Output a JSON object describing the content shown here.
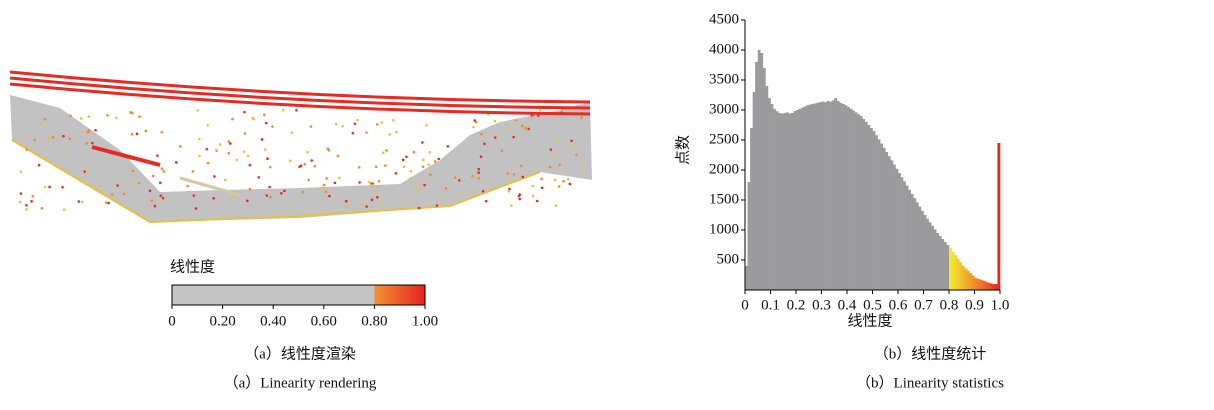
{
  "figure_a": {
    "colorbar": {
      "title": "线性度",
      "ticks": [
        0,
        {
          "value": 0.2,
          "label": "0.20"
        },
        {
          "value": 0.4,
          "label": "0.40"
        },
        {
          "value": 0.6,
          "label": "0.60"
        },
        {
          "value": 0.8,
          "label": "0.80"
        },
        {
          "value": 1,
          "label": "1.00"
        }
      ],
      "colors": [
        "#c4c4c4",
        "#f39233",
        "#e8231f"
      ]
    },
    "caption_cn": "（a）线性度渲染",
    "caption_en": "（a）Linearity rendering"
  },
  "chart_data": {
    "type": "histogram",
    "xlabel": "线性度",
    "ylabel": "点数",
    "caption_cn": "（b）线性度统计",
    "caption_en": "（b）Linearity statistics",
    "xlim": [
      0,
      1
    ],
    "ylim": [
      0,
      4500
    ],
    "xticks": [
      0,
      0.1,
      0.2,
      0.3,
      0.4,
      0.5,
      0.6,
      0.7,
      0.8,
      0.9,
      {
        "value": 1,
        "label": "1.0"
      }
    ],
    "yticks": [
      500,
      1000,
      1500,
      2000,
      2500,
      3000,
      3500,
      4000,
      4500
    ],
    "colors": [
      "#9b9b9d",
      "#f3ea2c",
      "#f08a2a",
      "#e61e1a"
    ],
    "bins": [
      0,
      0.01,
      0.02,
      0.03,
      0.04,
      0.05,
      0.06,
      0.07,
      0.08,
      0.09,
      0.1,
      0.11,
      0.12,
      0.13,
      0.14,
      0.15,
      0.16,
      0.17,
      0.18,
      0.19,
      0.2,
      0.21,
      0.22,
      0.23,
      0.24,
      0.25,
      0.26,
      0.27,
      0.28,
      0.29,
      0.3,
      0.31,
      0.32,
      0.33,
      0.34,
      0.35,
      0.36,
      0.37,
      0.38,
      0.39,
      0.4,
      0.41,
      0.42,
      0.43,
      0.44,
      0.45,
      0.46,
      0.47,
      0.48,
      0.49,
      0.5,
      0.51,
      0.52,
      0.53,
      0.54,
      0.55,
      0.56,
      0.57,
      0.58,
      0.59,
      0.6,
      0.61,
      0.62,
      0.63,
      0.64,
      0.65,
      0.66,
      0.67,
      0.68,
      0.69,
      0.7,
      0.71,
      0.72,
      0.73,
      0.74,
      0.75,
      0.76,
      0.77,
      0.78,
      0.79,
      0.8,
      0.81,
      0.82,
      0.83,
      0.84,
      0.85,
      0.86,
      0.87,
      0.88,
      0.89,
      0.9,
      0.91,
      0.92,
      0.93,
      0.94,
      0.95,
      0.96,
      0.97,
      0.98,
      0.99,
      1
    ],
    "values": [
      400,
      1800,
      2700,
      3300,
      3800,
      4000,
      3950,
      3700,
      3400,
      3200,
      3100,
      3020,
      2980,
      2950,
      2940,
      2950,
      2960,
      2940,
      2950,
      2980,
      3000,
      3020,
      3040,
      3060,
      3080,
      3090,
      3100,
      3110,
      3120,
      3130,
      3140,
      3130,
      3150,
      3140,
      3160,
      3200,
      3150,
      3120,
      3100,
      3080,
      3050,
      3020,
      2990,
      2960,
      2930,
      2900,
      2850,
      2800,
      2750,
      2700,
      2650,
      2580,
      2510,
      2440,
      2370,
      2300,
      2230,
      2160,
      2090,
      2020,
      1950,
      1880,
      1810,
      1740,
      1670,
      1600,
      1530,
      1460,
      1390,
      1320,
      1250,
      1190,
      1130,
      1070,
      1010,
      950,
      900,
      850,
      800,
      750,
      700,
      640,
      580,
      520,
      460,
      400,
      360,
      320,
      280,
      240,
      200,
      185,
      170,
      155,
      140,
      120,
      110,
      100,
      100,
      2450
    ]
  }
}
